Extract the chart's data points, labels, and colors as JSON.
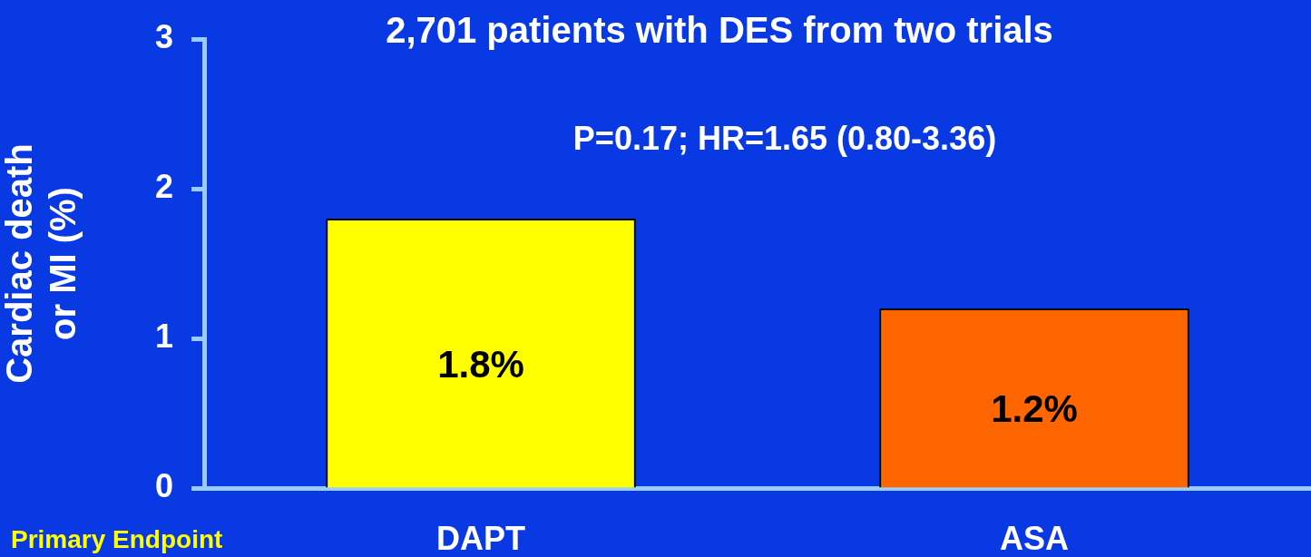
{
  "chart_data": {
    "type": "bar",
    "title": "2,701 patients with DES from two trials",
    "ylabel": "Cardiac death\nor MI (%)",
    "categories": [
      "DAPT",
      "ASA"
    ],
    "values": [
      1.8,
      1.2
    ],
    "colors": [
      "#ffff00",
      "#ff6600"
    ],
    "value_labels": [
      "1.8%",
      "1.2%"
    ],
    "ylim": [
      0,
      3
    ],
    "yticks": [
      0,
      1,
      2,
      3
    ],
    "grid": false,
    "legend": false,
    "annotations": [
      "P=0.17; HR=1.65 (0.80-3.36)",
      "Primary Endpoint"
    ]
  }
}
